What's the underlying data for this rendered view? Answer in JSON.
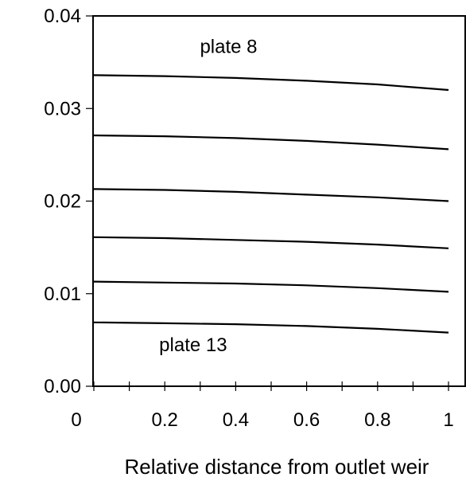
{
  "chart_data": {
    "type": "line",
    "title": "",
    "xlabel": "Relative distance from outlet weir",
    "ylabel": "",
    "xlim": [
      0,
      1
    ],
    "ylim": [
      0,
      0.04
    ],
    "x_ticks": [
      0,
      0.2,
      0.4,
      0.6,
      0.8,
      1
    ],
    "x_tick_labels": [
      "0",
      "0.2",
      "0.4",
      "0.6",
      "0.8",
      "1"
    ],
    "x_minor_step": 0.1,
    "y_ticks": [
      0,
      0.01,
      0.02,
      0.03,
      0.04
    ],
    "y_tick_labels": [
      "0.00",
      "0.01",
      "0.02",
      "0.03",
      "0.04"
    ],
    "grid": false,
    "series": [
      {
        "x": [
          0.0,
          0.2,
          0.4,
          0.6,
          0.8,
          1.0
        ],
        "values": [
          0.0336,
          0.0335,
          0.0333,
          0.033,
          0.0326,
          0.032
        ]
      },
      {
        "x": [
          0.0,
          0.2,
          0.4,
          0.6,
          0.8,
          1.0
        ],
        "values": [
          0.0271,
          0.027,
          0.0268,
          0.0265,
          0.0261,
          0.0256
        ]
      },
      {
        "x": [
          0.0,
          0.2,
          0.4,
          0.6,
          0.8,
          1.0
        ],
        "values": [
          0.0213,
          0.0212,
          0.021,
          0.0207,
          0.0204,
          0.02
        ]
      },
      {
        "x": [
          0.0,
          0.2,
          0.4,
          0.6,
          0.8,
          1.0
        ],
        "values": [
          0.0161,
          0.016,
          0.0158,
          0.0156,
          0.0153,
          0.0149
        ]
      },
      {
        "x": [
          0.0,
          0.2,
          0.4,
          0.6,
          0.8,
          1.0
        ],
        "values": [
          0.0113,
          0.0112,
          0.0111,
          0.0109,
          0.0106,
          0.0102
        ]
      },
      {
        "x": [
          0.0,
          0.2,
          0.4,
          0.6,
          0.8,
          1.0
        ],
        "values": [
          0.0069,
          0.0068,
          0.0067,
          0.0065,
          0.0062,
          0.0058
        ]
      }
    ],
    "annotations": [
      {
        "text": "plate 8",
        "x": 0.38,
        "y": 0.036
      },
      {
        "text": "plate 13",
        "x": 0.28,
        "y": 0.0038
      }
    ]
  }
}
